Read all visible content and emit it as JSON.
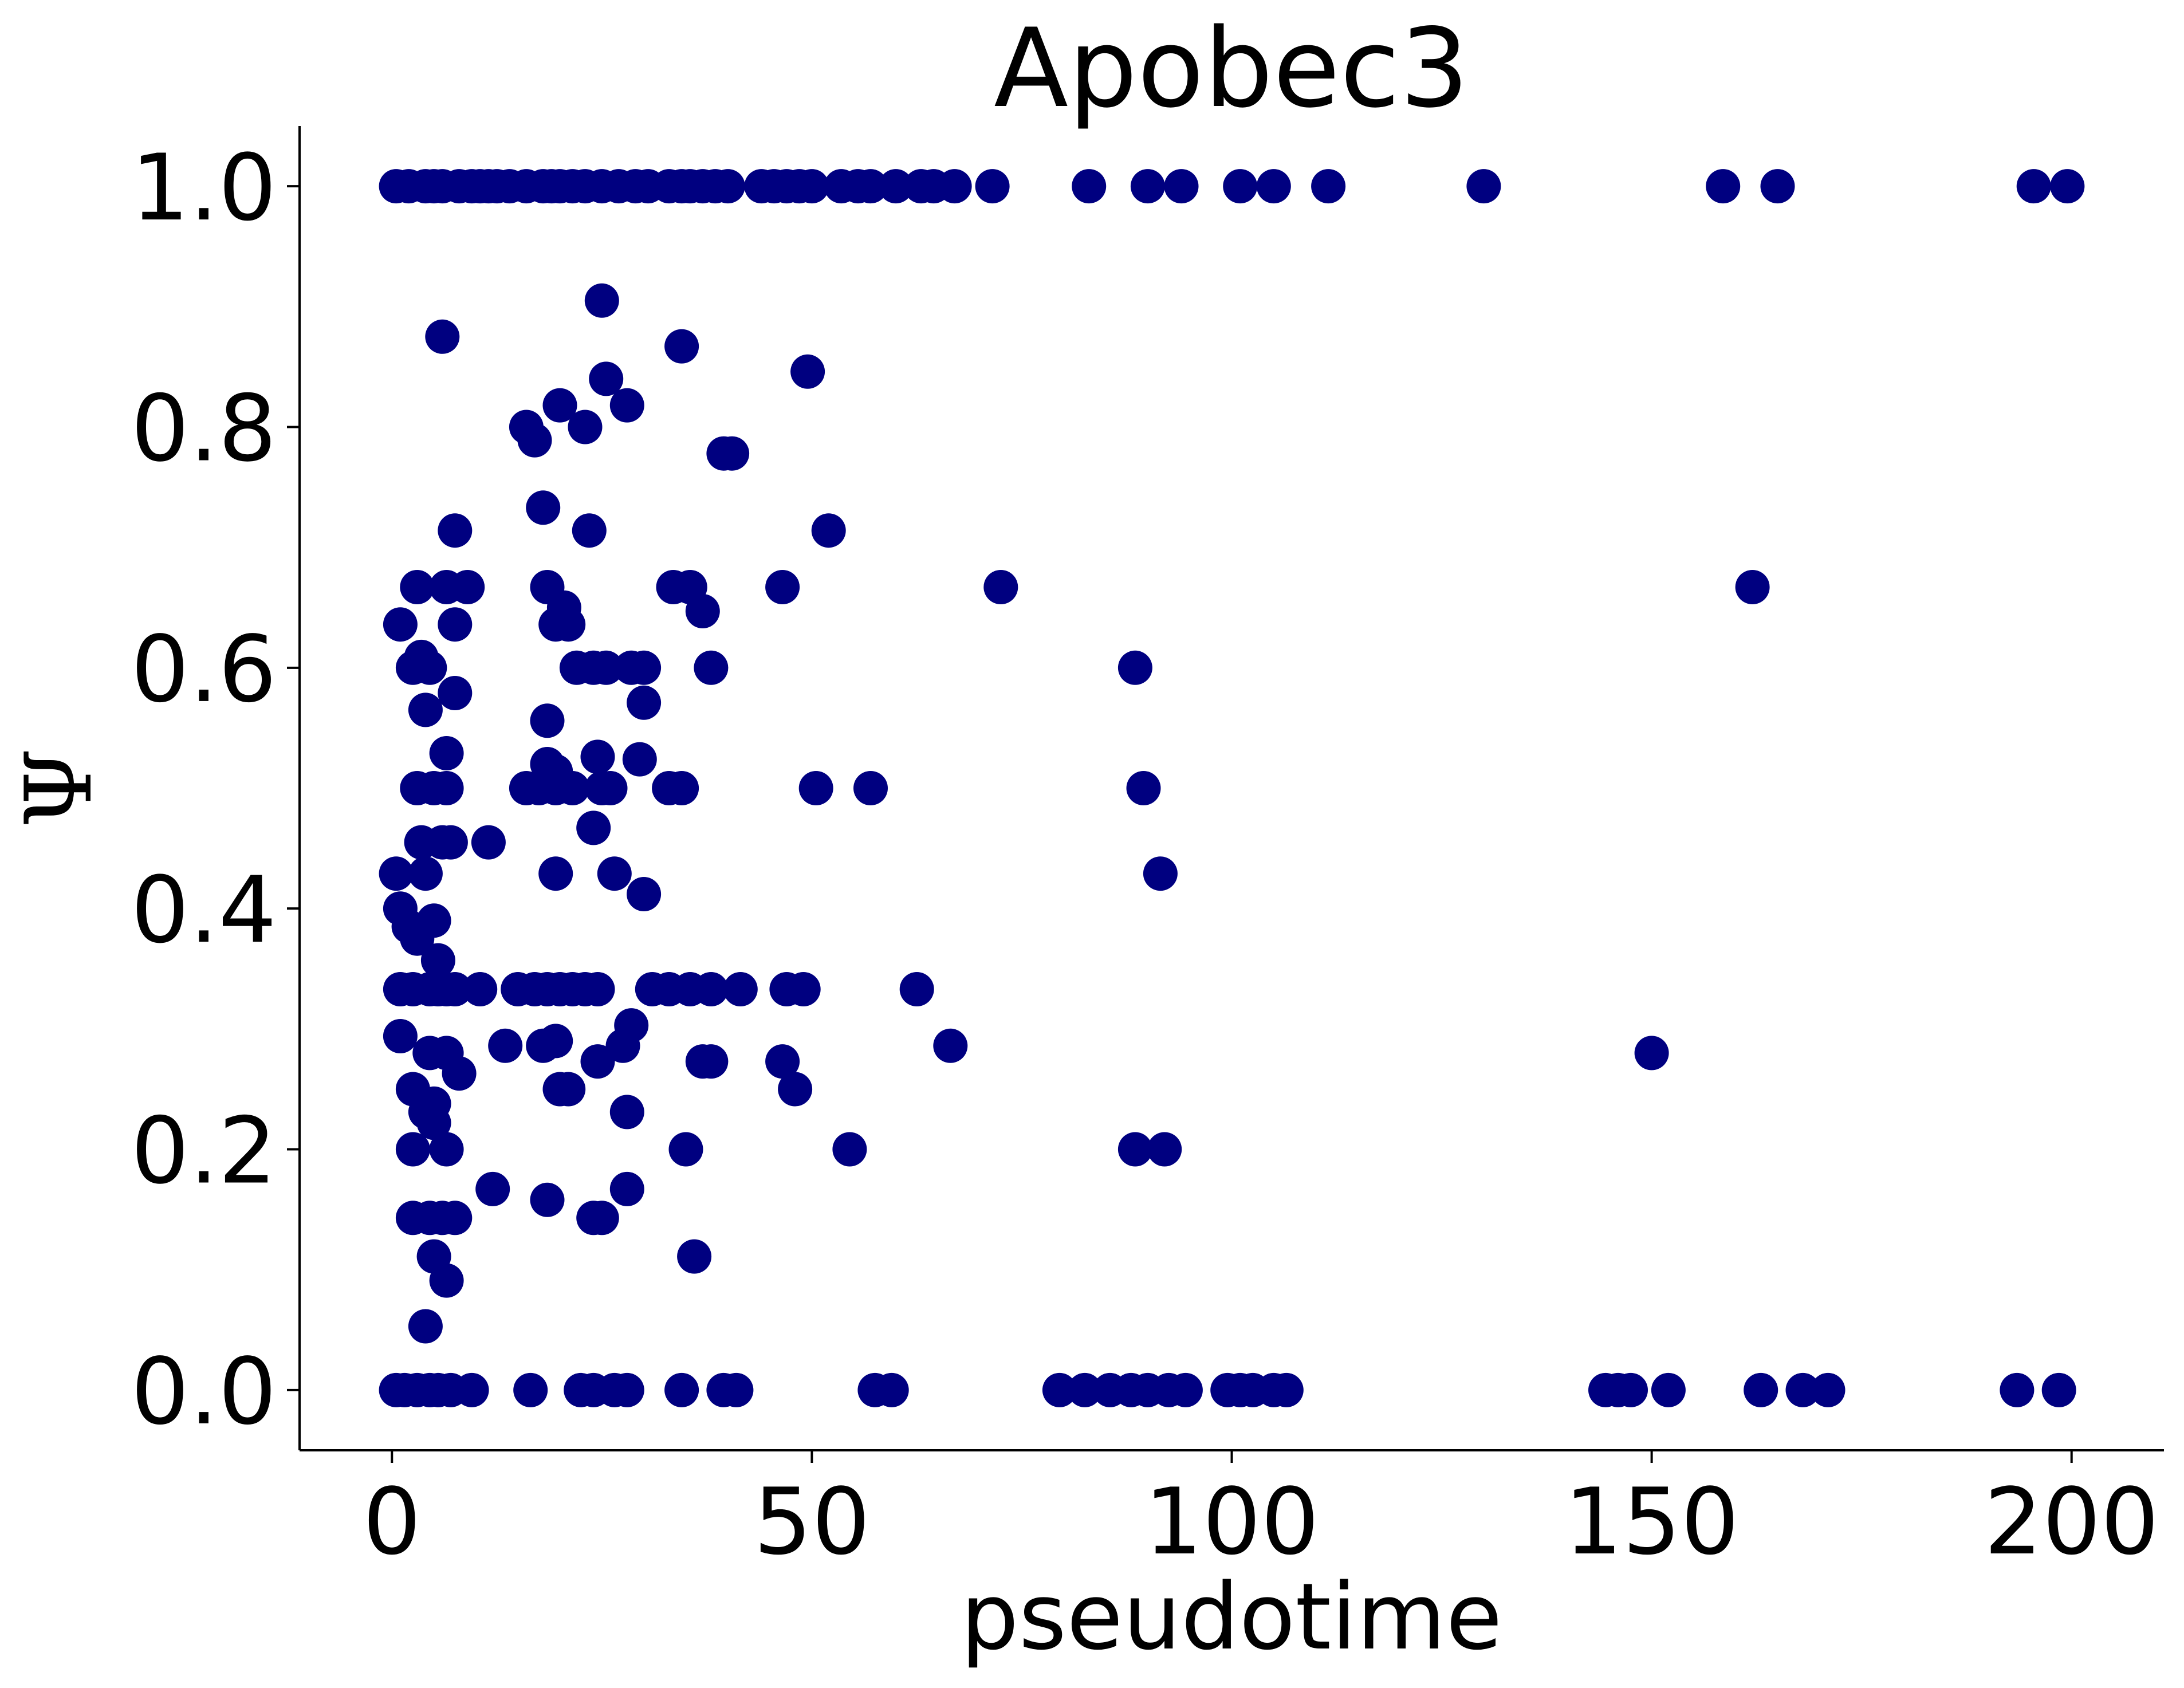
{
  "chart_data": {
    "type": "scatter",
    "title": "Apobec3",
    "xlabel": "pseudotime",
    "ylabel": "Ψ",
    "xlim": [
      -11,
      211
    ],
    "ylim": [
      -0.05,
      1.05
    ],
    "xticks": [
      0,
      50,
      100,
      150,
      200
    ],
    "yticks": [
      0.0,
      0.2,
      0.4,
      0.6,
      0.8,
      1.0
    ],
    "xtick_labels": [
      "0",
      "50",
      "100",
      "150",
      "200"
    ],
    "ytick_labels": [
      "0.0",
      "0.2",
      "0.4",
      "0.6",
      "0.8",
      "1.0"
    ],
    "grid": false,
    "legend": "none",
    "marker_color": "#000080",
    "series": [
      {
        "points": [
          [
            0.5,
            1.0
          ],
          [
            2.0,
            1.0
          ],
          [
            4.0,
            1.0
          ],
          [
            5.0,
            1.0
          ],
          [
            6.0,
            1.0
          ],
          [
            8.0,
            1.0
          ],
          [
            9.5,
            1.0
          ],
          [
            10.5,
            1.0
          ],
          [
            11.5,
            1.0
          ],
          [
            12.5,
            1.0
          ],
          [
            14.0,
            1.0
          ],
          [
            16.0,
            1.0
          ],
          [
            18.0,
            1.0
          ],
          [
            19.0,
            1.0
          ],
          [
            20.0,
            1.0
          ],
          [
            21.5,
            1.0
          ],
          [
            23.0,
            1.0
          ],
          [
            25.0,
            1.0
          ],
          [
            27.0,
            1.0
          ],
          [
            29.0,
            1.0
          ],
          [
            30.5,
            1.0
          ],
          [
            33.0,
            1.0
          ],
          [
            34.5,
            1.0
          ],
          [
            35.5,
            1.0
          ],
          [
            37.0,
            1.0
          ],
          [
            38.5,
            1.0
          ],
          [
            40.0,
            1.0
          ],
          [
            44.0,
            1.0
          ],
          [
            45.5,
            1.0
          ],
          [
            47.0,
            1.0
          ],
          [
            48.5,
            1.0
          ],
          [
            50.0,
            1.0
          ],
          [
            53.5,
            1.0
          ],
          [
            55.5,
            1.0
          ],
          [
            57.0,
            1.0
          ],
          [
            60.0,
            1.0
          ],
          [
            63.0,
            1.0
          ],
          [
            64.5,
            1.0
          ],
          [
            67.0,
            1.0
          ],
          [
            71.5,
            1.0
          ],
          [
            83.0,
            1.0
          ],
          [
            90.0,
            1.0
          ],
          [
            94.0,
            1.0
          ],
          [
            101.0,
            1.0
          ],
          [
            105.0,
            1.0
          ],
          [
            111.5,
            1.0
          ],
          [
            130.0,
            1.0
          ],
          [
            158.5,
            1.0
          ],
          [
            165.0,
            1.0
          ],
          [
            195.5,
            1.0
          ],
          [
            199.5,
            1.0
          ],
          [
            25.0,
            0.905
          ],
          [
            6.0,
            0.875
          ],
          [
            34.5,
            0.867
          ],
          [
            49.5,
            0.846
          ],
          [
            25.5,
            0.84
          ],
          [
            28.0,
            0.818
          ],
          [
            20.0,
            0.818
          ],
          [
            16.0,
            0.8
          ],
          [
            23.0,
            0.8
          ],
          [
            17.0,
            0.789
          ],
          [
            39.5,
            0.778
          ],
          [
            40.5,
            0.778
          ],
          [
            18.0,
            0.733
          ],
          [
            7.5,
            0.714
          ],
          [
            23.5,
            0.714
          ],
          [
            52.0,
            0.714
          ],
          [
            3.0,
            0.667
          ],
          [
            6.5,
            0.667
          ],
          [
            9.0,
            0.667
          ],
          [
            18.5,
            0.667
          ],
          [
            33.5,
            0.667
          ],
          [
            35.5,
            0.667
          ],
          [
            46.5,
            0.667
          ],
          [
            72.5,
            0.667
          ],
          [
            162.0,
            0.667
          ],
          [
            37.0,
            0.647
          ],
          [
            20.5,
            0.65
          ],
          [
            1.0,
            0.636
          ],
          [
            7.5,
            0.636
          ],
          [
            19.5,
            0.636
          ],
          [
            21.0,
            0.636
          ],
          [
            3.5,
            0.609
          ],
          [
            2.5,
            0.6
          ],
          [
            4.5,
            0.6
          ],
          [
            22.0,
            0.6
          ],
          [
            24.0,
            0.6
          ],
          [
            25.5,
            0.6
          ],
          [
            28.5,
            0.6
          ],
          [
            30.0,
            0.6
          ],
          [
            38.0,
            0.6
          ],
          [
            88.5,
            0.6
          ],
          [
            7.5,
            0.579
          ],
          [
            30.0,
            0.571
          ],
          [
            4.0,
            0.565
          ],
          [
            18.5,
            0.556
          ],
          [
            6.5,
            0.529
          ],
          [
            24.5,
            0.526
          ],
          [
            29.5,
            0.524
          ],
          [
            18.5,
            0.52
          ],
          [
            19.5,
            0.514
          ],
          [
            3.0,
            0.5
          ],
          [
            5.0,
            0.5
          ],
          [
            6.5,
            0.5
          ],
          [
            16.0,
            0.5
          ],
          [
            17.5,
            0.5
          ],
          [
            19.5,
            0.5
          ],
          [
            21.5,
            0.5
          ],
          [
            25.0,
            0.5
          ],
          [
            26.0,
            0.5
          ],
          [
            33.0,
            0.5
          ],
          [
            34.5,
            0.5
          ],
          [
            50.5,
            0.5
          ],
          [
            57.0,
            0.5
          ],
          [
            89.5,
            0.5
          ],
          [
            24.0,
            0.467
          ],
          [
            3.5,
            0.455
          ],
          [
            6.0,
            0.455
          ],
          [
            7.0,
            0.455
          ],
          [
            11.5,
            0.455
          ],
          [
            0.5,
            0.429
          ],
          [
            4.0,
            0.429
          ],
          [
            19.5,
            0.429
          ],
          [
            26.5,
            0.429
          ],
          [
            91.5,
            0.429
          ],
          [
            30.0,
            0.412
          ],
          [
            1.0,
            0.4
          ],
          [
            2.0,
            0.385
          ],
          [
            5.0,
            0.39
          ],
          [
            3.0,
            0.375
          ],
          [
            5.5,
            0.357
          ],
          [
            1.0,
            0.333
          ],
          [
            2.5,
            0.333
          ],
          [
            4.5,
            0.333
          ],
          [
            5.5,
            0.333
          ],
          [
            6.5,
            0.333
          ],
          [
            7.5,
            0.333
          ],
          [
            10.5,
            0.333
          ],
          [
            15.0,
            0.333
          ],
          [
            17.0,
            0.333
          ],
          [
            18.5,
            0.333
          ],
          [
            20.0,
            0.333
          ],
          [
            21.5,
            0.333
          ],
          [
            23.0,
            0.333
          ],
          [
            24.5,
            0.333
          ],
          [
            31.0,
            0.333
          ],
          [
            33.0,
            0.333
          ],
          [
            35.5,
            0.333
          ],
          [
            38.0,
            0.333
          ],
          [
            41.5,
            0.333
          ],
          [
            47.0,
            0.333
          ],
          [
            49.0,
            0.333
          ],
          [
            62.5,
            0.333
          ],
          [
            28.5,
            0.303
          ],
          [
            1.0,
            0.294
          ],
          [
            13.5,
            0.286
          ],
          [
            18.0,
            0.286
          ],
          [
            19.5,
            0.29
          ],
          [
            27.5,
            0.286
          ],
          [
            66.5,
            0.286
          ],
          [
            4.5,
            0.28
          ],
          [
            6.5,
            0.28
          ],
          [
            150.0,
            0.28
          ],
          [
            24.5,
            0.273
          ],
          [
            37.0,
            0.273
          ],
          [
            38.0,
            0.273
          ],
          [
            46.5,
            0.273
          ],
          [
            8.0,
            0.263
          ],
          [
            2.5,
            0.25
          ],
          [
            20.0,
            0.25
          ],
          [
            21.0,
            0.25
          ],
          [
            48.0,
            0.25
          ],
          [
            5.0,
            0.238
          ],
          [
            4.0,
            0.231
          ],
          [
            5.0,
            0.222
          ],
          [
            28.0,
            0.231
          ],
          [
            2.5,
            0.2
          ],
          [
            6.5,
            0.2
          ],
          [
            35.0,
            0.2
          ],
          [
            54.5,
            0.2
          ],
          [
            88.5,
            0.2
          ],
          [
            92.0,
            0.2
          ],
          [
            12.0,
            0.167
          ],
          [
            28.0,
            0.167
          ],
          [
            18.5,
            0.158
          ],
          [
            2.5,
            0.143
          ],
          [
            4.5,
            0.143
          ],
          [
            6.0,
            0.143
          ],
          [
            7.5,
            0.143
          ],
          [
            24.0,
            0.143
          ],
          [
            25.0,
            0.143
          ],
          [
            5.0,
            0.111
          ],
          [
            36.0,
            0.111
          ],
          [
            6.5,
            0.091
          ],
          [
            4.0,
            0.053
          ],
          [
            0.5,
            0.0
          ],
          [
            1.5,
            0.0
          ],
          [
            3.0,
            0.0
          ],
          [
            4.5,
            0.0
          ],
          [
            5.5,
            0.0
          ],
          [
            7.0,
            0.0
          ],
          [
            9.5,
            0.0
          ],
          [
            16.5,
            0.0
          ],
          [
            22.5,
            0.0
          ],
          [
            24.0,
            0.0
          ],
          [
            26.5,
            0.0
          ],
          [
            28.0,
            0.0
          ],
          [
            34.5,
            0.0
          ],
          [
            39.5,
            0.0
          ],
          [
            41.0,
            0.0
          ],
          [
            57.5,
            0.0
          ],
          [
            59.5,
            0.0
          ],
          [
            79.5,
            0.0
          ],
          [
            82.5,
            0.0
          ],
          [
            85.5,
            0.0
          ],
          [
            88.0,
            0.0
          ],
          [
            90.0,
            0.0
          ],
          [
            92.5,
            0.0
          ],
          [
            94.5,
            0.0
          ],
          [
            99.5,
            0.0
          ],
          [
            101.0,
            0.0
          ],
          [
            102.5,
            0.0
          ],
          [
            105.0,
            0.0
          ],
          [
            106.5,
            0.0
          ],
          [
            144.5,
            0.0
          ],
          [
            146.0,
            0.0
          ],
          [
            147.5,
            0.0
          ],
          [
            152.0,
            0.0
          ],
          [
            163.0,
            0.0
          ],
          [
            168.0,
            0.0
          ],
          [
            171.0,
            0.0
          ],
          [
            193.5,
            0.0
          ],
          [
            198.5,
            0.0
          ]
        ]
      }
    ]
  }
}
